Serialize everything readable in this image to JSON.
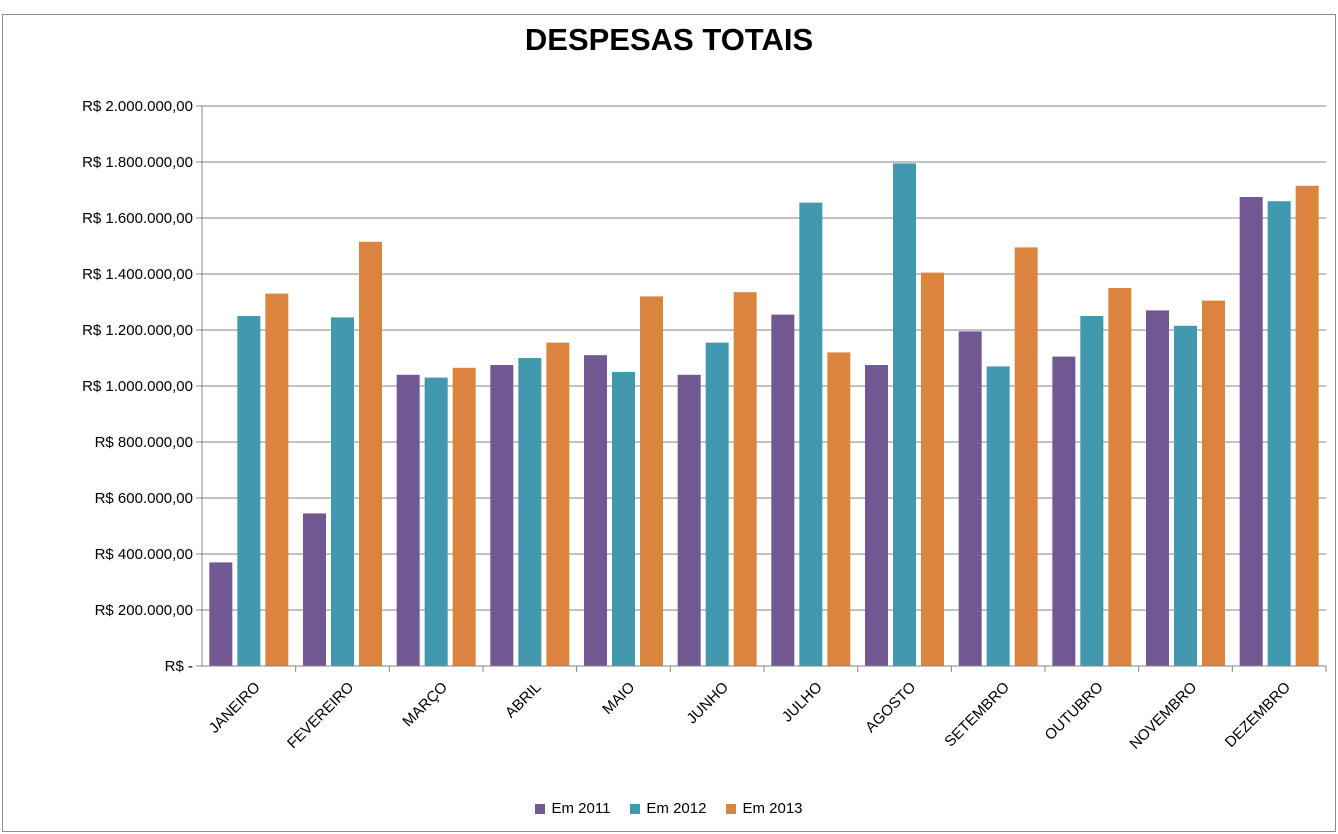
{
  "chart_data": {
    "type": "bar",
    "title": "DESPESAS TOTAIS",
    "xlabel": "",
    "ylabel": "",
    "ylim": [
      0,
      2000000
    ],
    "grid": true,
    "legend_position": "bottom",
    "y_ticks": [
      {
        "value": 0,
        "label": "R$ -"
      },
      {
        "value": 200000,
        "label": "R$ 200.000,00"
      },
      {
        "value": 400000,
        "label": "R$ 400.000,00"
      },
      {
        "value": 600000,
        "label": "R$ 600.000,00"
      },
      {
        "value": 800000,
        "label": "R$ 800.000,00"
      },
      {
        "value": 1000000,
        "label": "R$ 1.000.000,00"
      },
      {
        "value": 1200000,
        "label": "R$ 1.200.000,00"
      },
      {
        "value": 1400000,
        "label": "R$ 1.400.000,00"
      },
      {
        "value": 1600000,
        "label": "R$ 1.600.000,00"
      },
      {
        "value": 1800000,
        "label": "R$ 1.800.000,00"
      },
      {
        "value": 2000000,
        "label": "R$ 2.000.000,00"
      }
    ],
    "categories": [
      "JANEIRO",
      "FEVEREIRO",
      "MARÇO",
      "ABRIL",
      "MAIO",
      "JUNHO",
      "JULHO",
      "AGOSTO",
      "SETEMBRO",
      "OUTUBRO",
      "NOVEMBRO",
      "DEZEMBRO"
    ],
    "series": [
      {
        "name": "Em 2011",
        "color": "#725892",
        "values": [
          370000,
          545000,
          1040000,
          1075000,
          1110000,
          1040000,
          1255000,
          1075000,
          1195000,
          1105000,
          1270000,
          1675000
        ]
      },
      {
        "name": "Em 2012",
        "color": "#4198AF",
        "values": [
          1250000,
          1245000,
          1030000,
          1100000,
          1050000,
          1155000,
          1655000,
          1795000,
          1070000,
          1250000,
          1215000,
          1660000
        ]
      },
      {
        "name": "Em 2013",
        "color": "#DB843D",
        "values": [
          1330000,
          1515000,
          1065000,
          1155000,
          1320000,
          1335000,
          1120000,
          1405000,
          1495000,
          1350000,
          1305000,
          1715000
        ]
      }
    ]
  }
}
